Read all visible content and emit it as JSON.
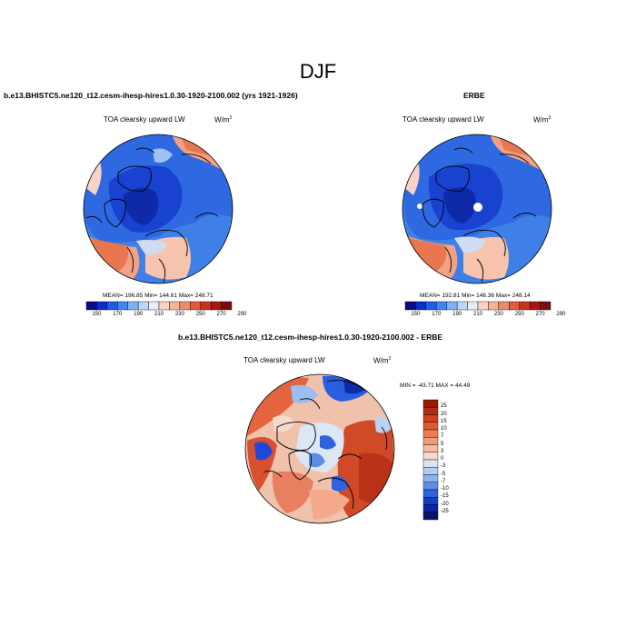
{
  "figure": {
    "season_title": "DJF"
  },
  "panels": [
    {
      "id": "model",
      "case_title": "b.e13.BHISTC5.ne120_t12.cesm-ihesp-hires1.0.30-1920-2100.002 (yrs 1921-1926)",
      "variable": "TOA clearsky upward LW",
      "units_base": "W/m",
      "units_exp": "2",
      "mean": "196.85",
      "min": "144.61",
      "max": "248.71",
      "stats_text": "MEAN= 196.85   Min= 144.61   Max= 248.71"
    },
    {
      "id": "obs",
      "case_title": "ERBE",
      "variable": "TOA clearsky upward LW",
      "units_base": "W/m",
      "units_exp": "2",
      "mean": "192.81",
      "min": "146.36",
      "max": "248.14",
      "stats_text": "MEAN= 192.81   Min= 146.36   Max= 248.14"
    },
    {
      "id": "diff",
      "case_title": "b.e13.BHISTC5.ne120_t12.cesm-ihesp-hires1.0.30-1920-2100.002 - ERBE",
      "variable": "TOA clearsky upward LW",
      "units_base": "W/m",
      "units_exp": "2",
      "min": "-43.71",
      "max": "44.49",
      "stats_text": "MIN = -43.71  MAX =  44.49"
    }
  ],
  "colorbars": {
    "absolute": {
      "labels": [
        "150",
        "170",
        "190",
        "210",
        "230",
        "250",
        "270",
        "290"
      ],
      "colors": [
        "#0a0a8a",
        "#0b2ec8",
        "#1f5be8",
        "#3f86f0",
        "#7fb0f5",
        "#bcd6f7",
        "#e8edf5",
        "#f7d5c4",
        "#f5b39a",
        "#ee8a6c",
        "#df5a3e",
        "#c83224",
        "#a81612",
        "#7a0e0e"
      ]
    },
    "difference": {
      "labels": [
        "25",
        "20",
        "15",
        "10",
        "7",
        "5",
        "3",
        "0",
        "-3",
        "-5",
        "-7",
        "-10",
        "-15",
        "-20",
        "-25"
      ],
      "colors": [
        "#9a1a08",
        "#bb2a10",
        "#d0401c",
        "#e05a30",
        "#eb7c56",
        "#f29b7a",
        "#f6bca3",
        "#f8d8c8",
        "#dbe4f2",
        "#b4cdef",
        "#8bb2ec",
        "#5b8fe6",
        "#2f62dc",
        "#143ec4",
        "#0c26a4",
        "#061470"
      ]
    }
  },
  "chart_data": [
    {
      "type": "heatmap",
      "projection": "north-polar-stereographic",
      "title": "b.e13.BHISTC5.ne120_t12.cesm-ihesp-hires1.0.30-1920-2100.002 (yrs 1921-1926)",
      "variable": "TOA clearsky upward LW",
      "units": "W/m2",
      "stats": {
        "mean": 196.85,
        "min": 144.61,
        "max": 248.71
      },
      "contour_levels": [
        150,
        160,
        170,
        180,
        190,
        200,
        210,
        220,
        230,
        240,
        250,
        260,
        270,
        280,
        290
      ]
    },
    {
      "type": "heatmap",
      "projection": "north-polar-stereographic",
      "title": "ERBE",
      "variable": "TOA clearsky upward LW",
      "units": "W/m2",
      "stats": {
        "mean": 192.81,
        "min": 146.36,
        "max": 248.14
      },
      "contour_levels": [
        150,
        160,
        170,
        180,
        190,
        200,
        210,
        220,
        230,
        240,
        250,
        260,
        270,
        280,
        290
      ]
    },
    {
      "type": "heatmap",
      "projection": "north-polar-stereographic",
      "title": "b.e13.BHISTC5.ne120_t12.cesm-ihesp-hires1.0.30-1920-2100.002 - ERBE",
      "variable": "TOA clearsky upward LW",
      "units": "W/m2",
      "stats": {
        "min": -43.71,
        "max": 44.49
      },
      "contour_levels": [
        -25,
        -20,
        -15,
        -10,
        -7,
        -5,
        -3,
        0,
        3,
        5,
        7,
        10,
        15,
        20,
        25
      ]
    }
  ]
}
